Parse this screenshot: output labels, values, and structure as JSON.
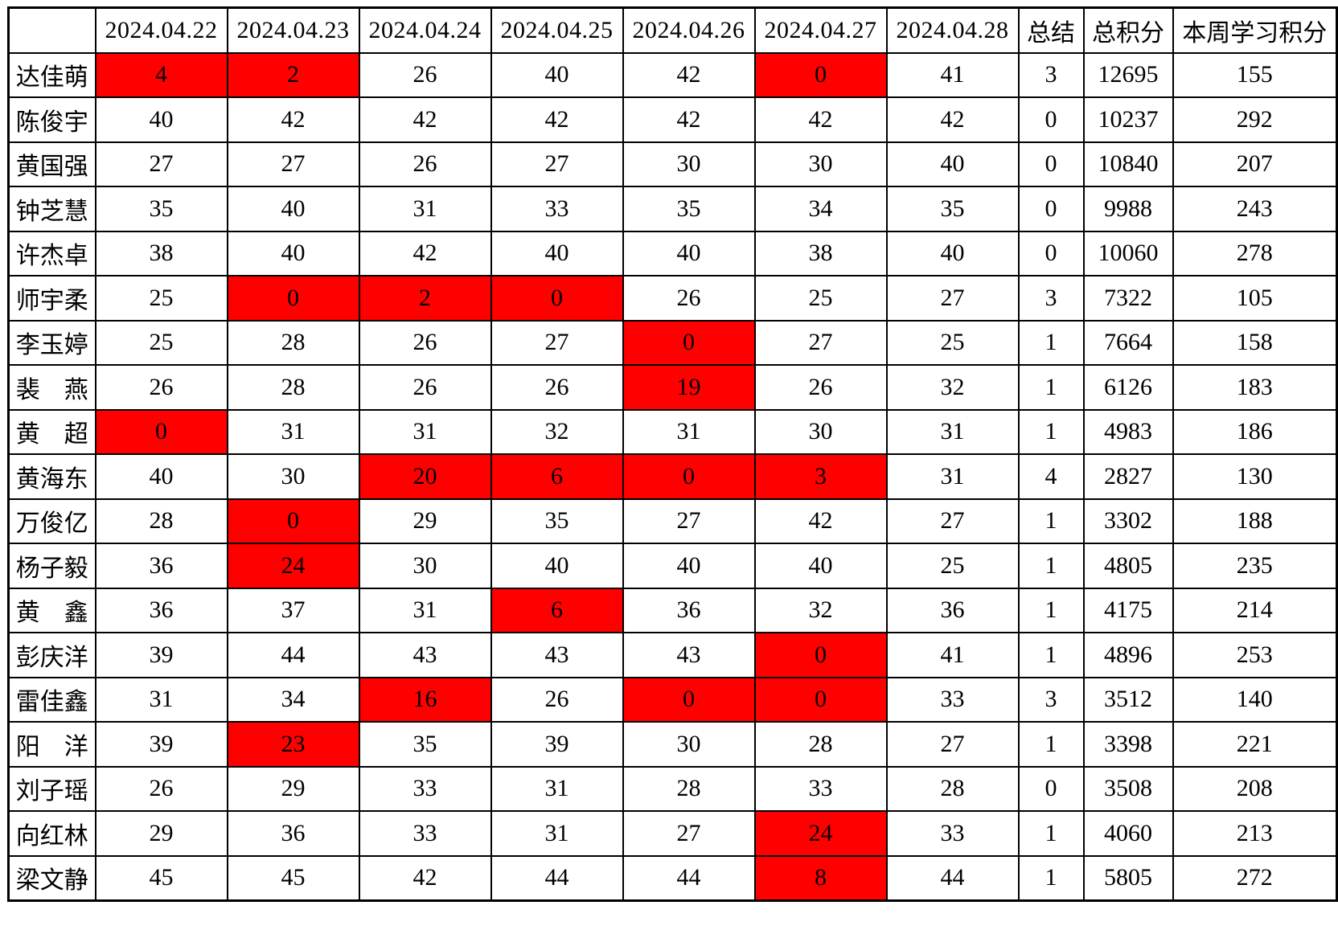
{
  "colors": {
    "highlight_bg": "#ff0000",
    "highlight_text": "#c00000",
    "accent_text": "#ff0000",
    "grid": "#000000"
  },
  "header": {
    "corner": "",
    "dates": [
      "2024.04.22",
      "2024.04.23",
      "2024.04.24",
      "2024.04.25",
      "2024.04.26",
      "2024.04.27",
      "2024.04.28"
    ],
    "summary_label": "总结",
    "total_label": "总积分",
    "week_label": "本周学习积分"
  },
  "rows": [
    {
      "name": "达佳萌",
      "values": [
        4,
        2,
        26,
        40,
        42,
        0,
        41
      ],
      "highlight": [
        0,
        1,
        5
      ],
      "summary": 3,
      "total": 12695,
      "week": 155
    },
    {
      "name": "陈俊宇",
      "values": [
        40,
        42,
        42,
        42,
        42,
        42,
        42
      ],
      "highlight": [],
      "summary": 0,
      "total": 10237,
      "week": 292
    },
    {
      "name": "黄国强",
      "values": [
        27,
        27,
        26,
        27,
        30,
        30,
        40
      ],
      "highlight": [],
      "summary": 0,
      "total": 10840,
      "week": 207
    },
    {
      "name": "钟芝慧",
      "values": [
        35,
        40,
        31,
        33,
        35,
        34,
        35
      ],
      "highlight": [],
      "summary": 0,
      "total": 9988,
      "week": 243
    },
    {
      "name": "许杰卓",
      "values": [
        38,
        40,
        42,
        40,
        40,
        38,
        40
      ],
      "highlight": [],
      "summary": 0,
      "total": 10060,
      "week": 278
    },
    {
      "name": "师宇柔",
      "values": [
        25,
        0,
        2,
        0,
        26,
        25,
        27
      ],
      "highlight": [
        1,
        2,
        3
      ],
      "summary": 3,
      "total": 7322,
      "week": 105
    },
    {
      "name": "李玉婷",
      "values": [
        25,
        28,
        26,
        27,
        0,
        27,
        25
      ],
      "highlight": [
        4
      ],
      "summary": 1,
      "total": 7664,
      "week": 158
    },
    {
      "name": "裴　燕",
      "values": [
        26,
        28,
        26,
        26,
        19,
        26,
        32
      ],
      "highlight": [
        4
      ],
      "summary": 1,
      "total": 6126,
      "week": 183
    },
    {
      "name": "黄　超",
      "values": [
        0,
        31,
        31,
        32,
        31,
        30,
        31
      ],
      "highlight": [
        0
      ],
      "summary": 1,
      "total": 4983,
      "week": 186
    },
    {
      "name": "黄海东",
      "values": [
        40,
        30,
        20,
        6,
        0,
        3,
        31
      ],
      "highlight": [
        2,
        3,
        4,
        5
      ],
      "summary": 4,
      "total": 2827,
      "week": 130
    },
    {
      "name": "万俊亿",
      "values": [
        28,
        0,
        29,
        35,
        27,
        42,
        27
      ],
      "highlight": [
        1
      ],
      "summary": 1,
      "total": 3302,
      "week": 188
    },
    {
      "name": "杨子毅",
      "values": [
        36,
        24,
        30,
        40,
        40,
        40,
        25
      ],
      "highlight": [
        1
      ],
      "summary": 1,
      "total": 4805,
      "week": 235
    },
    {
      "name": "黄　鑫",
      "values": [
        36,
        37,
        31,
        6,
        36,
        32,
        36
      ],
      "highlight": [
        3
      ],
      "summary": 1,
      "total": 4175,
      "week": 214
    },
    {
      "name": "彭庆洋",
      "values": [
        39,
        44,
        43,
        43,
        43,
        0,
        41
      ],
      "highlight": [
        5
      ],
      "summary": 1,
      "total": 4896,
      "week": 253
    },
    {
      "name": "雷佳鑫",
      "values": [
        31,
        34,
        16,
        26,
        0,
        0,
        33
      ],
      "highlight": [
        2,
        4,
        5
      ],
      "summary": 3,
      "total": 3512,
      "week": 140
    },
    {
      "name": "阳　洋",
      "values": [
        39,
        23,
        35,
        39,
        30,
        28,
        27
      ],
      "highlight": [
        1
      ],
      "summary": 1,
      "total": 3398,
      "week": 221
    },
    {
      "name": "刘子瑶",
      "values": [
        26,
        29,
        33,
        31,
        28,
        33,
        28
      ],
      "highlight": [],
      "summary": 0,
      "total": 3508,
      "week": 208
    },
    {
      "name": "向红林",
      "values": [
        29,
        36,
        33,
        31,
        27,
        24,
        33
      ],
      "highlight": [
        5
      ],
      "summary": 1,
      "total": 4060,
      "week": 213
    },
    {
      "name": "梁文静",
      "values": [
        45,
        45,
        42,
        44,
        44,
        8,
        44
      ],
      "highlight": [
        5
      ],
      "summary": 1,
      "total": 5805,
      "week": 272
    }
  ]
}
